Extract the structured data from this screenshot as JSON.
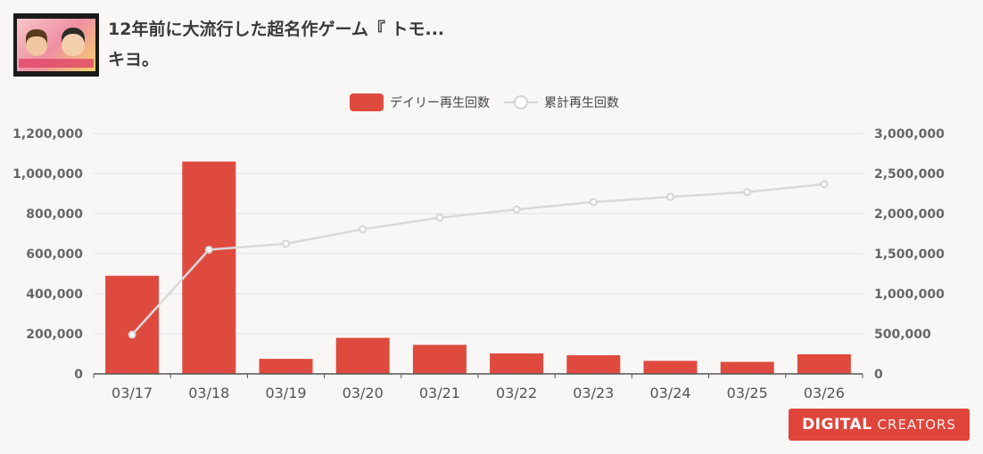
{
  "header": {
    "title": "12年前に大流行した超名作ゲーム『 トモ... キヨ。"
  },
  "logo": {
    "bold": "DIGITAL",
    "light": "CREATORS"
  },
  "chart_data": {
    "type": "bar",
    "categories": [
      "03/17",
      "03/18",
      "03/19",
      "03/20",
      "03/21",
      "03/22",
      "03/23",
      "03/24",
      "03/25",
      "03/26"
    ],
    "series": [
      {
        "name": "デイリー再生回数",
        "type": "bar",
        "axis": "left",
        "color": "#df4a3f",
        "values": [
          490000,
          1060000,
          75000,
          180000,
          145000,
          102000,
          93000,
          65000,
          60000,
          98000
        ]
      },
      {
        "name": "累計再生回数",
        "type": "line",
        "axis": "right",
        "color": "#d9d9d9",
        "values": [
          490000,
          1550000,
          1625000,
          1805000,
          1950000,
          2052000,
          2145000,
          2210000,
          2270000,
          2368000
        ]
      }
    ],
    "y_left": {
      "range": [
        0,
        1200000
      ],
      "ticks": [
        "0",
        "200,000",
        "400,000",
        "600,000",
        "800,000",
        "1,000,000",
        "1,200,000"
      ]
    },
    "y_right": {
      "range": [
        0,
        3000000
      ],
      "ticks": [
        "0",
        "500,000",
        "1,000,000",
        "1,500,000",
        "2,000,000",
        "2,500,000",
        "3,000,000"
      ]
    },
    "grid": true,
    "legend_position": "top-center"
  }
}
